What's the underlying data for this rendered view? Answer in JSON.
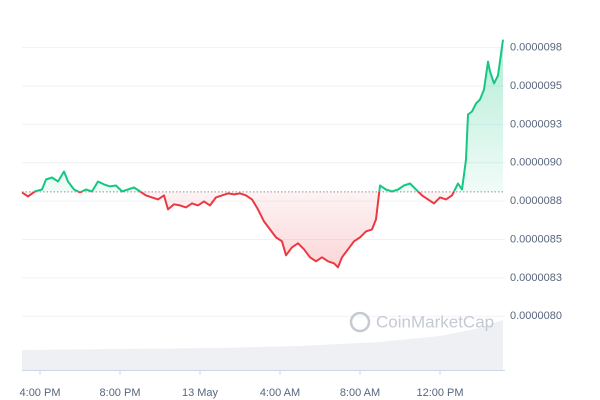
{
  "chart_data": {
    "type": "line",
    "watermark": "CoinMarketCap",
    "x": [
      15.1,
      15.4,
      15.75,
      16.1,
      16.3,
      16.6,
      16.9,
      17.2,
      17.4,
      17.7,
      18.0,
      18.3,
      18.6,
      18.9,
      19.2,
      19.5,
      19.8,
      20.1,
      20.4,
      20.7,
      21.0,
      21.3,
      21.6,
      21.9,
      22.2,
      22.4,
      22.7,
      23.0,
      23.3,
      23.6,
      23.9,
      24.2,
      24.5,
      24.8,
      25.1,
      25.4,
      25.7,
      26.0,
      26.3,
      26.6,
      26.9,
      27.2,
      27.5,
      27.8,
      28.1,
      28.3,
      28.6,
      28.9,
      29.2,
      29.5,
      29.8,
      30.1,
      30.4,
      30.7,
      30.9,
      31.1,
      31.4,
      31.7,
      32.0,
      32.3,
      32.6,
      32.8,
      33.0,
      33.3,
      33.6,
      33.9,
      34.2,
      34.5,
      34.8,
      35.1,
      35.4,
      35.7,
      36.0,
      36.3,
      36.6,
      36.9,
      37.1,
      37.3,
      37.4,
      37.6,
      37.8,
      38.0,
      38.2,
      38.4,
      38.5,
      38.7,
      38.9,
      39.15
    ],
    "values": [
      8.807e-06,
      8.781e-06,
      8.813e-06,
      8.826e-06,
      8.891e-06,
      8.904e-06,
      8.878e-06,
      8.943e-06,
      8.878e-06,
      8.826e-06,
      8.807e-06,
      8.826e-06,
      8.813e-06,
      8.878e-06,
      8.859e-06,
      8.846e-06,
      8.852e-06,
      8.813e-06,
      8.826e-06,
      8.839e-06,
      8.813e-06,
      8.787e-06,
      8.774e-06,
      8.761e-06,
      8.787e-06,
      8.696e-06,
      8.729e-06,
      8.722e-06,
      8.709e-06,
      8.735e-06,
      8.722e-06,
      8.748e-06,
      8.722e-06,
      8.774e-06,
      8.787e-06,
      8.8e-06,
      8.794e-06,
      8.8e-06,
      8.787e-06,
      8.761e-06,
      8.696e-06,
      8.618e-06,
      8.566e-06,
      8.514e-06,
      8.488e-06,
      8.397e-06,
      8.449e-06,
      8.475e-06,
      8.436e-06,
      8.384e-06,
      8.358e-06,
      8.384e-06,
      8.358e-06,
      8.345e-06,
      8.319e-06,
      8.384e-06,
      8.436e-06,
      8.488e-06,
      8.514e-06,
      8.553e-06,
      8.566e-06,
      8.631e-06,
      8.852e-06,
      8.826e-06,
      8.813e-06,
      8.826e-06,
      8.852e-06,
      8.865e-06,
      8.826e-06,
      8.787e-06,
      8.761e-06,
      8.735e-06,
      8.774e-06,
      8.761e-06,
      8.787e-06,
      8.865e-06,
      8.826e-06,
      9.021e-06,
      9.314e-06,
      9.334e-06,
      9.386e-06,
      9.412e-06,
      9.477e-06,
      9.659e-06,
      9.594e-06,
      9.516e-06,
      9.568e-06,
      9.802e-06
    ],
    "baseline": 8.81e-06,
    "up_color": "#16c784",
    "down_color": "#ea3943",
    "xlim": [
      15.1,
      39.15
    ],
    "xticks": [
      {
        "value": 16,
        "label": "4:00 PM"
      },
      {
        "value": 20,
        "label": "8:00 PM"
      },
      {
        "value": 24,
        "label": "13 May"
      },
      {
        "value": 28,
        "label": "4:00 AM"
      },
      {
        "value": 32,
        "label": "8:00 AM"
      },
      {
        "value": 36,
        "label": "12:00 PM"
      }
    ],
    "ylim": [
      7.65e-06,
      1.006e-05
    ],
    "yticks": [
      {
        "value": 8e-06,
        "label": "0.0000080"
      },
      {
        "value": 8.25e-06,
        "label": "0.0000083"
      },
      {
        "value": 8.5e-06,
        "label": "0.0000085"
      },
      {
        "value": 8.75e-06,
        "label": "0.0000088"
      },
      {
        "value": 9e-06,
        "label": "0.0000090"
      },
      {
        "value": 9.25e-06,
        "label": "0.0000093"
      },
      {
        "value": 9.5e-06,
        "label": "0.0000095"
      },
      {
        "value": 9.75e-06,
        "label": "0.0000098"
      }
    ],
    "grid": true
  }
}
